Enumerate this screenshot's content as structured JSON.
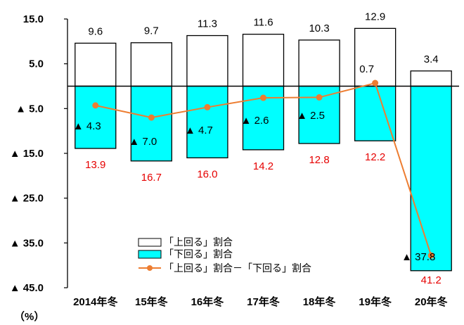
{
  "chart_data": {
    "type": "bar",
    "categories": [
      "2014年冬",
      "15年冬",
      "16年冬",
      "17年冬",
      "18年冬",
      "19年冬",
      "20年冬"
    ],
    "series": [
      {
        "name": "「上回る」割合",
        "values": [
          9.6,
          9.7,
          11.3,
          11.6,
          10.3,
          12.9,
          3.4
        ],
        "labels": [
          "9.6",
          "9.7",
          "11.3",
          "11.6",
          "10.3",
          "12.9",
          "3.4"
        ],
        "color": "#ffffff"
      },
      {
        "name": "「下回る」割合",
        "values": [
          -13.9,
          -16.7,
          -16.0,
          -14.2,
          -12.8,
          -12.2,
          -41.2
        ],
        "labels": [
          "13.9",
          "16.7",
          "16.0",
          "14.2",
          "12.8",
          "12.2",
          "41.2"
        ],
        "color": "#00ffff"
      },
      {
        "name": "「上回る」割合－「下回る」割合",
        "type": "line",
        "values": [
          -4.3,
          -7.0,
          -4.7,
          -2.6,
          -2.5,
          0.7,
          -37.8
        ],
        "labels": [
          "▲ 4.3",
          "▲ 7.0",
          "▲ 4.7",
          "▲ 2.6",
          "▲ 2.5",
          "0.7",
          "▲ 37.8"
        ],
        "color": "#ed7d31"
      }
    ],
    "y_ticks": [
      {
        "value": 15,
        "label": "15.0"
      },
      {
        "value": 5,
        "label": "5.0"
      },
      {
        "value": -5,
        "label": "▲ 5.0"
      },
      {
        "value": -15,
        "label": "▲ 15.0"
      },
      {
        "value": -25,
        "label": "▲ 25.0"
      },
      {
        "value": -35,
        "label": "▲ 35.0"
      },
      {
        "value": -45,
        "label": "▲ 45.0"
      }
    ],
    "ylim": [
      -45,
      15
    ],
    "yunit": "（%）",
    "legend_position": "inside-bottom-center",
    "grid": false
  }
}
